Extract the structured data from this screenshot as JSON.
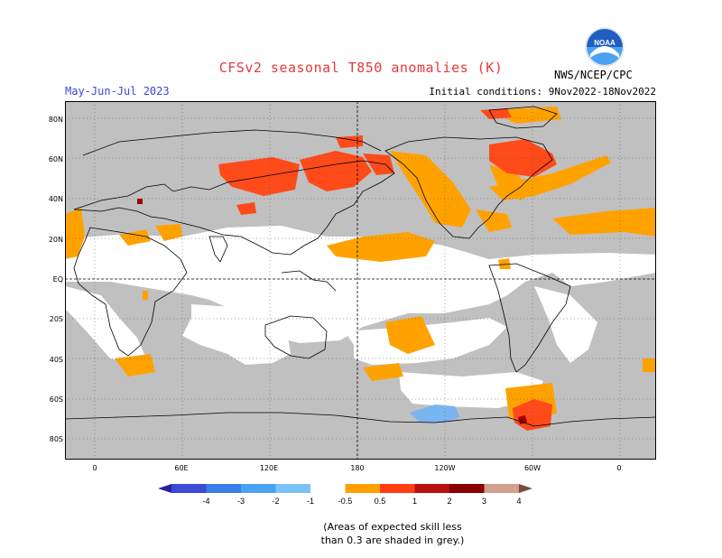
{
  "header": {
    "title": "CFSv2 seasonal T850 anomalies (K)",
    "period": "May-Jun-Jul 2023",
    "initial_conditions": "Initial conditions: 9Nov2022-18Nov2022",
    "agency": "NWS/NCEP/CPC",
    "logo_text": "NOAA"
  },
  "map": {
    "lat_labels": [
      "80N",
      "60N",
      "40N",
      "20N",
      "EQ",
      "20S",
      "40S",
      "60S",
      "80S"
    ],
    "lon_labels": [
      "0",
      "60E",
      "120E",
      "180",
      "120W",
      "60W",
      "0"
    ],
    "colors": {
      "skill_mask": "#c0c0c0",
      "ocean_land_no_signal": "#ffffff",
      "pos_0_5_1": "#ffa200",
      "pos_1_2": "#ff4a1a",
      "pos_2_3": "#a00000",
      "neg_0_5_1": "#78b4f0"
    }
  },
  "colorbar": {
    "labels": [
      "-4",
      "-3",
      "-2",
      "-1",
      "-0.5",
      "0.5",
      "1",
      "2",
      "3",
      "4"
    ],
    "colors": [
      "#2b1ea8",
      "#3c4bd8",
      "#3a7ee8",
      "#4aa3f0",
      "#7bc3f6",
      "#ffffff",
      "#ffa200",
      "#ff3d10",
      "#b81010",
      "#8a0000",
      "#d2a08c",
      "#7a4a3a"
    ]
  },
  "footnote": {
    "line1": "(Areas of expected skill less",
    "line2": "than 0.3 are shaded in grey.)"
  }
}
